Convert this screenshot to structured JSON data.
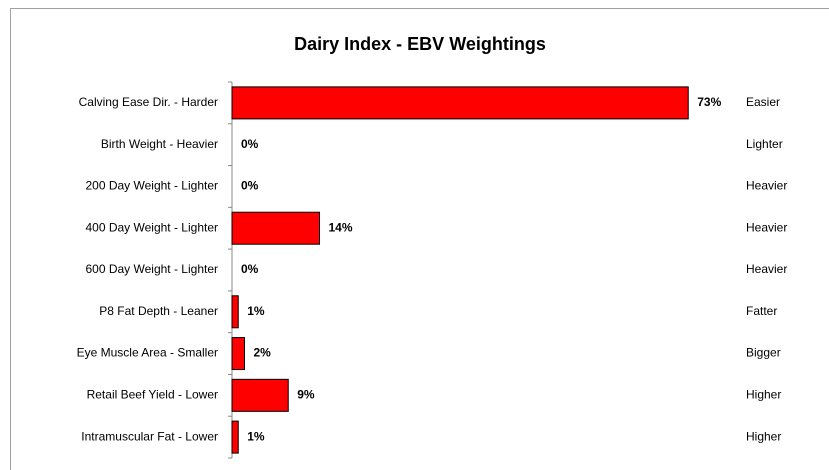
{
  "chart_data": {
    "type": "bar",
    "orientation": "horizontal",
    "title": "Dairy Index - EBV Weightings",
    "categories": [
      "Calving Ease Dir. - Harder",
      "Birth Weight - Heavier",
      "200 Day Weight - Lighter",
      "400 Day Weight - Lighter",
      "600 Day Weight - Lighter",
      "P8 Fat Depth - Leaner",
      "Eye Muscle Area - Smaller",
      "Retail Beef Yield - Lower",
      "Intramuscular Fat - Lower"
    ],
    "right_labels": [
      "Easier",
      "Lighter",
      "Heavier",
      "Heavier",
      "Heavier",
      "Fatter",
      "Bigger",
      "Higher",
      "Higher"
    ],
    "values": [
      73,
      0,
      0,
      14,
      0,
      1,
      2,
      9,
      1
    ],
    "value_labels": [
      "73%",
      "0%",
      "0%",
      "14%",
      "0%",
      "1%",
      "2%",
      "9%",
      "1%"
    ],
    "color": "#ff0000"
  }
}
